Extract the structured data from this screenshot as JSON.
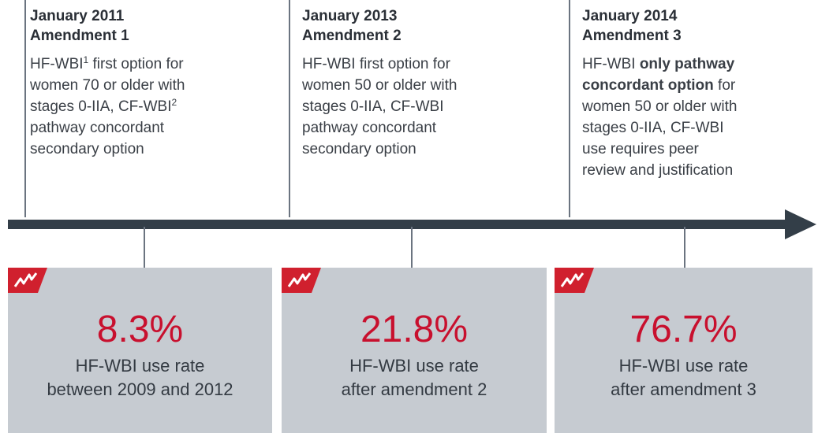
{
  "milestones": [
    {
      "date": "January 2011",
      "title": "Amendment 1",
      "lines": [
        [
          "HF-WBI",
          {
            "text": "1",
            "style": "sup"
          },
          " first option for"
        ],
        [
          "women 70 or older with"
        ],
        [
          "stages 0-IIA, CF-WBI",
          {
            "text": "2",
            "style": "sup"
          }
        ],
        [
          "pathway concordant"
        ],
        [
          "secondary option"
        ]
      ]
    },
    {
      "date": "January 2013",
      "title": "Amendment 2",
      "lines": [
        [
          "HF-WBI first option for"
        ],
        [
          "women 50 or older with"
        ],
        [
          "stages 0-IIA, CF-WBI"
        ],
        [
          "pathway concordant"
        ],
        [
          "secondary option"
        ]
      ]
    },
    {
      "date": "January 2014",
      "title": "Amendment 3",
      "lines": [
        [
          "HF-WBI ",
          {
            "text": "only pathway",
            "style": "bold"
          }
        ],
        [
          {
            "text": "concordant option",
            "style": "bold"
          },
          " for"
        ],
        [
          "women 50 or older with"
        ],
        [
          "stages 0-IIA, CF-WBI"
        ],
        [
          "use requires peer"
        ],
        [
          "review and justification"
        ]
      ]
    }
  ],
  "cards": [
    {
      "value": "8.3%",
      "lines": [
        "HF-WBI use rate",
        "between 2009 and 2012"
      ]
    },
    {
      "value": "21.8%",
      "lines": [
        "HF-WBI use rate",
        "after amendment 2"
      ]
    },
    {
      "value": "76.7%",
      "lines": [
        "HF-WBI use rate",
        "after amendment 3"
      ]
    }
  ]
}
